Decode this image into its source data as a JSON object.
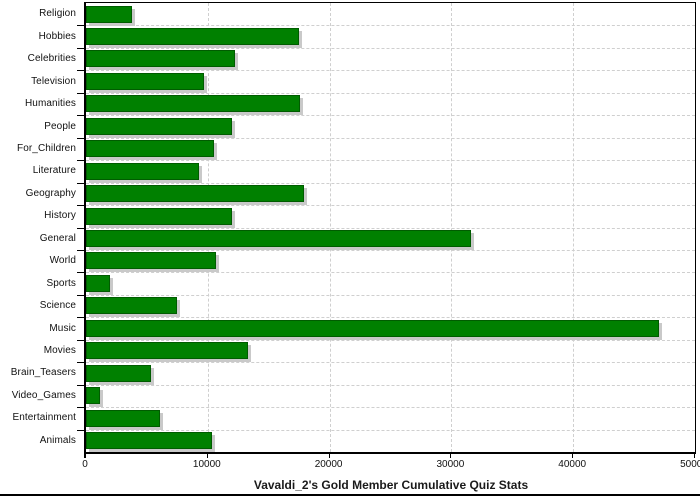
{
  "chart_data": {
    "type": "bar",
    "orientation": "horizontal",
    "title": "Vavaldi_2's Gold Member Cumulative Quiz Stats",
    "categories": [
      "Religion",
      "Hobbies",
      "Celebrities",
      "Television",
      "Humanities",
      "People",
      "For_Children",
      "Literature",
      "Geography",
      "History",
      "General",
      "World",
      "Sports",
      "Science",
      "Music",
      "Movies",
      "Brain_Teasers",
      "Video_Games",
      "Entertainment",
      "Animals"
    ],
    "values": [
      3800,
      17500,
      12200,
      9700,
      17600,
      12000,
      10500,
      9300,
      17900,
      12000,
      31600,
      10700,
      2000,
      7500,
      47000,
      13300,
      5300,
      1150,
      6100,
      10300
    ],
    "xlabel": "",
    "ylabel": "",
    "xlim": [
      0,
      50000
    ],
    "x_ticks": [
      0,
      10000,
      20000,
      30000,
      40000,
      50000
    ],
    "x_tick_labels": [
      "0",
      "10000",
      "20000",
      "30000",
      "40000",
      "50000"
    ],
    "grid": "dashed-on",
    "legend": "none",
    "bar_color": "#008000",
    "bar_border_color": "#005c00",
    "bar_shadow_color": "#c9c9c9",
    "grid_color": "#cfcfcf",
    "axis_color": "#000000",
    "background_color": "#ffffff"
  }
}
